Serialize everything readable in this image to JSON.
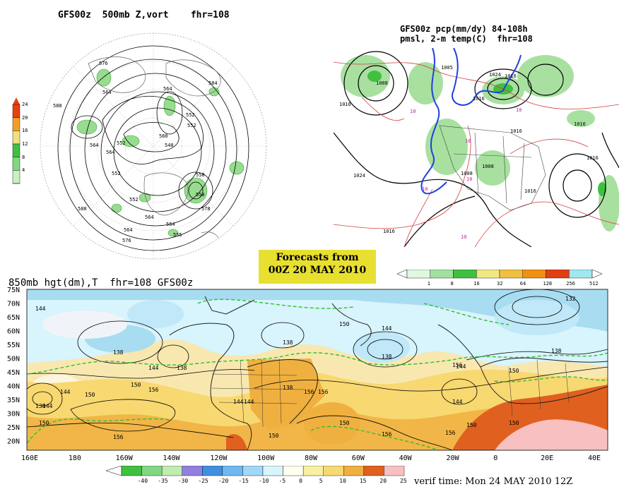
{
  "top_left": {
    "title": "GFS00z  500mb Z,vort    fhr=108",
    "colorbar_levels": [
      "24",
      "20",
      "16",
      "12",
      "8",
      "4"
    ],
    "colorbar_colors": [
      "#e84010",
      "#f0a020",
      "#f0e080",
      "#40c040",
      "#80d880",
      "#c8f0c0"
    ],
    "contour_labels": [
      "576",
      "564",
      "564",
      "564",
      "552",
      "552",
      "540",
      "552",
      "564",
      "558",
      "558",
      "552",
      "552",
      "564",
      "578",
      "564",
      "576",
      "564",
      "588",
      "560",
      "555",
      "584",
      "588"
    ]
  },
  "top_right": {
    "title_line1": "GFS00z pcp(mm/dy) 84-108h",
    "title_line2": "pmsl, 2-m temp(C)  fhr=108",
    "colorbar_labels": [
      "1",
      "8",
      "16",
      "32",
      "64",
      "128",
      "256",
      "512"
    ],
    "colorbar_colors": [
      "#e0f8e0",
      "#a0e0a0",
      "#40c040",
      "#f0e880",
      "#f0c040",
      "#f09010",
      "#e04010",
      "#a0e8f0"
    ],
    "isobar_labels": [
      "1005",
      "1008",
      "1016",
      "1024",
      "1016",
      "1024",
      "1016",
      "1016",
      "1008",
      "1008",
      "1016",
      "1016",
      "1016",
      "1016"
    ],
    "temp_labels": [
      "10",
      "10",
      "10",
      "10",
      "10",
      "10"
    ]
  },
  "banner": {
    "line1": "Forecasts from",
    "line2": "00Z 20 MAY 2010"
  },
  "bottom": {
    "title": "850mb hgt(dm),T  fhr=108 GFS00z",
    "lat_labels": [
      "75N",
      "70N",
      "65N",
      "60N",
      "55N",
      "50N",
      "45N",
      "40N",
      "35N",
      "30N",
      "25N",
      "20N"
    ],
    "lon_labels": [
      "160E",
      "180",
      "160W",
      "140W",
      "120W",
      "100W",
      "80W",
      "60W",
      "40W",
      "20W",
      "0",
      "20E",
      "40E"
    ],
    "contour_labels": [
      "144",
      "144",
      "144",
      "138",
      "144",
      "138",
      "150",
      "144",
      "150",
      "144",
      "138",
      "132",
      "138",
      "144",
      "156",
      "150",
      "138",
      "156",
      "150",
      "156",
      "150",
      "156",
      "144",
      "156",
      "150",
      "150",
      "156",
      "138",
      "144",
      "150",
      "156",
      "150",
      "138"
    ],
    "colorbar_labels": [
      "-40",
      "-35",
      "-30",
      "-25",
      "-20",
      "-15",
      "-10",
      "-5",
      "0",
      "5",
      "10",
      "15",
      "20",
      "25"
    ],
    "colorbar_colors": [
      "#40c040",
      "#80d880",
      "#c0ecb0",
      "#9080e0",
      "#4090e0",
      "#70b8f0",
      "#a0d8f8",
      "#d8f4fc",
      "#fffff0",
      "#f8f0a0",
      "#f8d870",
      "#f0b040",
      "#e06020",
      "#f8c0c0"
    ],
    "verif_time": "verif time: Mon 24 MAY 2010 12Z"
  }
}
